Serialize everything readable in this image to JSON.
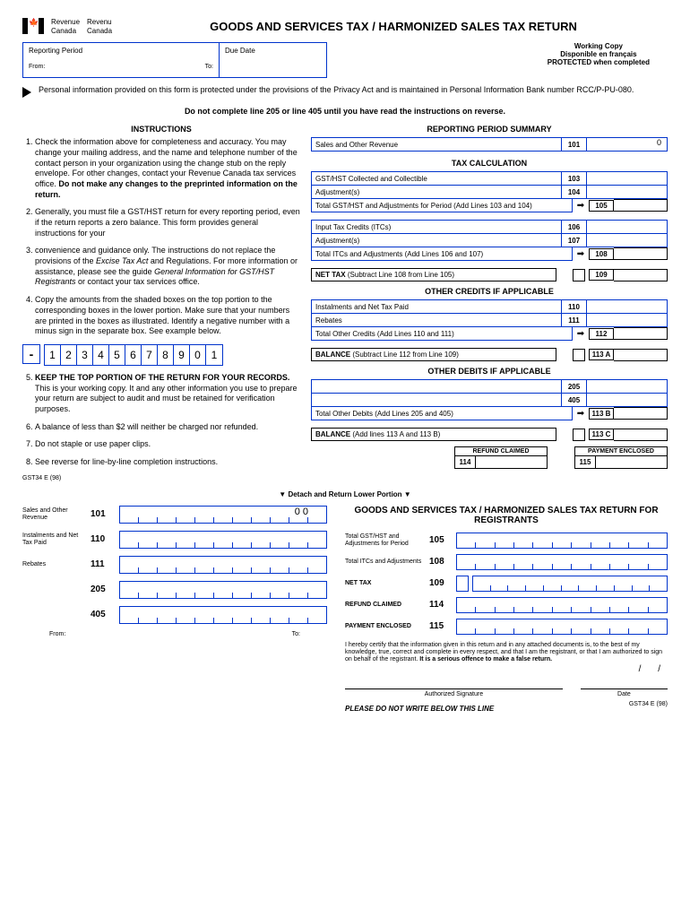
{
  "agency": {
    "en1": "Revenue",
    "en2": "Canada",
    "fr1": "Revenu",
    "fr2": "Canada"
  },
  "title": "GOODS AND SERVICES TAX / HARMONIZED SALES TAX  RETURN",
  "reporting_period": {
    "title": "Reporting Period",
    "from": "From:",
    "to": "To:"
  },
  "due_date": "Due Date",
  "working_copy": {
    "l1": "Working Copy",
    "l2": "Disponible en français",
    "l3": "PROTECTED when completed"
  },
  "privacy": "Personal information provided on this form is protected under the provisions of the Privacy Act and is maintained in Personal Information Bank number RCC/P-PU-080.",
  "warning": "Do not complete line 205 or line 405 until you have read the instructions on reverse.",
  "instructions_title": "INSTRUCTIONS",
  "instructions": {
    "i1a": "Check the information above for completeness and accuracy. You may change your mailing  address, and the name and telephone number of the contact person in your organization using the change stub on the reply envelope. For other changes, contact your Revenue Canada tax services office. ",
    "i1b": "Do not make any changes to the preprinted information on the return.",
    "i2": "Generally, you must file a GST/HST return for every reporting period, even if the return reports a zero balance. This form provides general instructions for your",
    "i3a": "convenience and guidance only. The instructions do not replace the provisions of the ",
    "i3b": "Excise Tax Act",
    "i3c": " and Regulations. For more information or assistance, please see the guide ",
    "i3d": "General Information for GST/HST Registrants",
    "i3e": " or contact your tax services office.",
    "i4": "Copy the amounts from the shaded boxes on the top portion to the corresponding boxes in the lower portion. Make sure that your numbers are printed in the boxes as illustrated. Identify a negative number with a minus sign in the separate box.  See example below.",
    "i5a": "KEEP THE TOP PORTION OF THE RETURN FOR YOUR RECORDS.",
    "i5b": " This is your working copy. It and any other information you use to prepare your return are subject to audit and must be retained for verification purposes.",
    "i6": "A balance of less than $2 will neither be charged nor refunded.",
    "i7": "Do not staple or use paper clips.",
    "i8": "See reverse for line-by-line completion instructions."
  },
  "example_digits": [
    "1",
    "2",
    "3",
    "4",
    "5",
    "6",
    "7",
    "8",
    "9",
    "0",
    "1"
  ],
  "summary_title": "REPORTING PERIOD SUMMARY",
  "sales_revenue": {
    "label": "Sales and Other Revenue",
    "num": "101",
    "val": "0"
  },
  "tax_calc_title": "TAX CALCULATION",
  "lines": {
    "l103": {
      "label": "GST/HST Collected and Collectible",
      "num": "103"
    },
    "l104": {
      "label": "Adjustment(s)",
      "num": "104"
    },
    "l105": {
      "label": "Total GST/HST and Adjustments for Period (Add Lines 103 and 104)",
      "num": "105"
    },
    "l106": {
      "label": "Input Tax Credits (ITCs)",
      "num": "106"
    },
    "l107": {
      "label": "Adjustment(s)",
      "num": "107"
    },
    "l108": {
      "label": "Total ITCs and Adjustments (Add Lines 106 and 107)",
      "num": "108"
    },
    "l109": {
      "label": "NET TAX (Subtract Line 108 from Line 105)",
      "num": "109"
    },
    "l110": {
      "label": "Instalments and Net Tax Paid",
      "num": "110"
    },
    "l111": {
      "label": "Rebates",
      "num": "111"
    },
    "l112": {
      "label": "Total Other Credits (Add Lines 110 and 111)",
      "num": "112"
    },
    "l113a": {
      "label": "BALANCE (Subtract Line 112 from Line 109)",
      "num": "113 A"
    },
    "l205": {
      "num": "205"
    },
    "l405": {
      "num": "405"
    },
    "l113b": {
      "label": "Total Other Debits (Add Lines 205 and 405)",
      "num": "113 B"
    },
    "l113c": {
      "label": "BALANCE (Add lines 113 A and 113 B)",
      "num": "113 C"
    }
  },
  "other_credits_title": "OTHER CREDITS IF APPLICABLE",
  "other_debits_title": "OTHER DEBITS IF APPLICABLE",
  "refund": {
    "title": "REFUND CLAIMED",
    "num": "114"
  },
  "payment": {
    "title": "PAYMENT ENCLOSED",
    "num": "115"
  },
  "detach": "▼    Detach and Return Lower Portion    ▼",
  "form_id": "GST34 E (98)",
  "bottom": {
    "title": "GOODS AND SERVICES TAX / HARMONIZED SALES TAX RETURN FOR REGISTRANTS",
    "b101": {
      "label": "Sales and Other Revenue",
      "num": "101",
      "disp": "0 0"
    },
    "b110": {
      "label": "Instalments and Net Tax Paid",
      "num": "110"
    },
    "b111": {
      "label": "Rebates",
      "num": "111"
    },
    "b205": {
      "num": "205"
    },
    "b405": {
      "num": "405"
    },
    "b105": {
      "label": "Total GST/HST and Adjustments for Period",
      "num": "105"
    },
    "b108": {
      "label": "Total ITCs and Adjustments",
      "num": "108"
    },
    "b109": {
      "label": "NET  TAX",
      "num": "109"
    },
    "b114": {
      "label": "REFUND  CLAIMED",
      "num": "114"
    },
    "b115": {
      "label": "PAYMENT ENCLOSED",
      "num": "115"
    },
    "from": "From:",
    "to": "To:",
    "cert": "I hereby certify that the information given in this return and in any attached documents is, to the best of my knowledge, true, correct and complete in every respect, and that I am the registrant, or that I am authorized to sign on behalf of the registrant. ",
    "cert_bold": "It is a serious offence to make a false return.",
    "sig": "Authorized Signature",
    "date": "Date",
    "no_write": "PLEASE DO NOT WRITE BELOW THIS LINE",
    "form_id2": "GST34 E (98)"
  }
}
